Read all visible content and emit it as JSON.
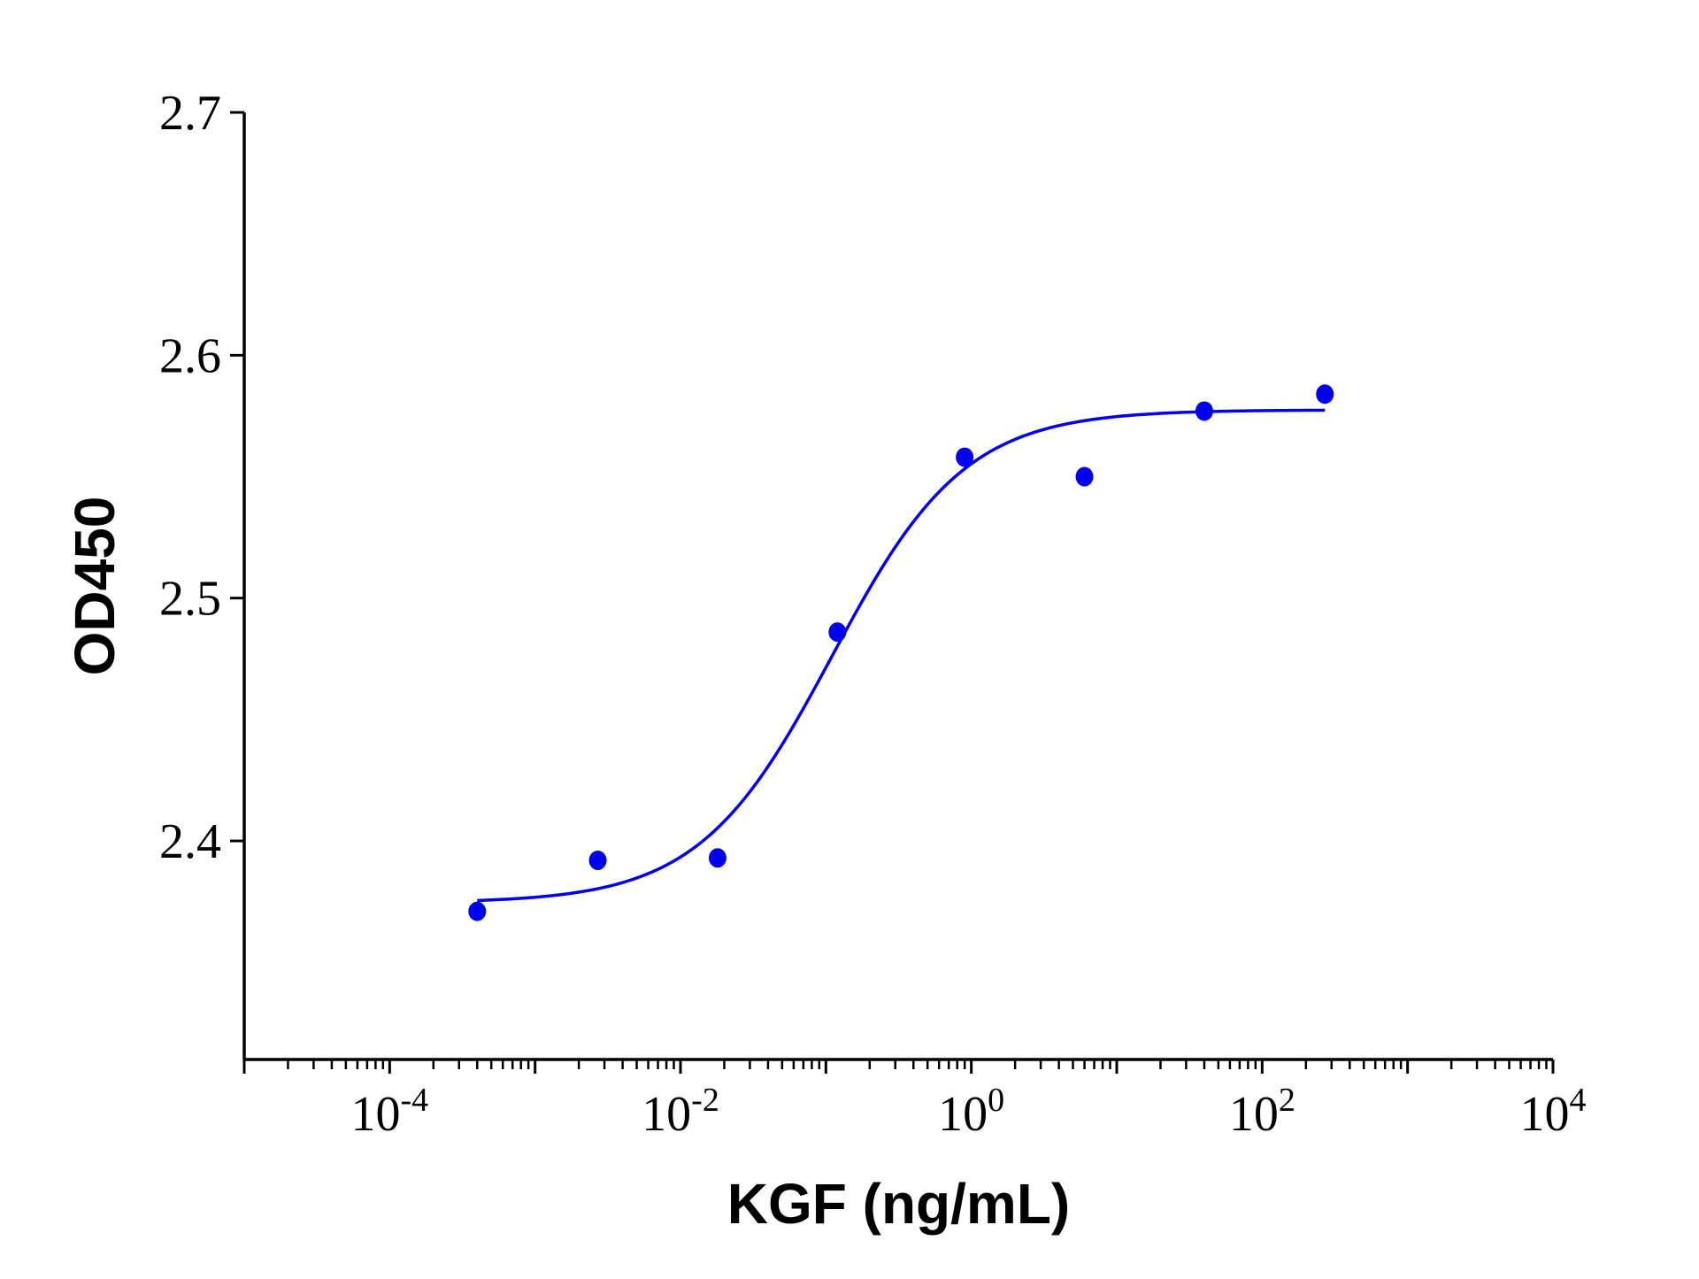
{
  "chart_data": {
    "type": "scatter",
    "title": "",
    "xlabel": "KGF (ng/mL)",
    "ylabel": "OD450",
    "x_scale": "log",
    "x_ticks": [
      {
        "value": 0.0001,
        "base": "10",
        "exp": "-4"
      },
      {
        "value": 0.01,
        "base": "10",
        "exp": "-2"
      },
      {
        "value": 1,
        "base": "10",
        "exp": "0"
      },
      {
        "value": 100,
        "base": "10",
        "exp": "2"
      },
      {
        "value": 10000,
        "base": "10",
        "exp": "4"
      }
    ],
    "y_ticks": [
      "2.4",
      "2.5",
      "2.6",
      "2.7"
    ],
    "xlim": [
      1e-05,
      10000
    ],
    "ylim": [
      2.31,
      2.7
    ],
    "grid": false,
    "color": "#0000ee",
    "series": [
      {
        "points": [
          {
            "x": 0.0004,
            "y": 2.371
          },
          {
            "x": 0.0027,
            "y": 2.392
          },
          {
            "x": 0.018,
            "y": 2.393
          },
          {
            "x": 0.12,
            "y": 2.486
          },
          {
            "x": 0.9,
            "y": 2.558
          },
          {
            "x": 6.0,
            "y": 2.55
          },
          {
            "x": 40,
            "y": 2.577
          },
          {
            "x": 270,
            "y": 2.584
          }
        ],
        "fit": {
          "model": "4PL",
          "bottom": 2.3745,
          "top": 2.5775,
          "ec50": 0.11,
          "hill": 0.95,
          "x_range": [
            0.0004,
            270
          ]
        }
      }
    ]
  }
}
